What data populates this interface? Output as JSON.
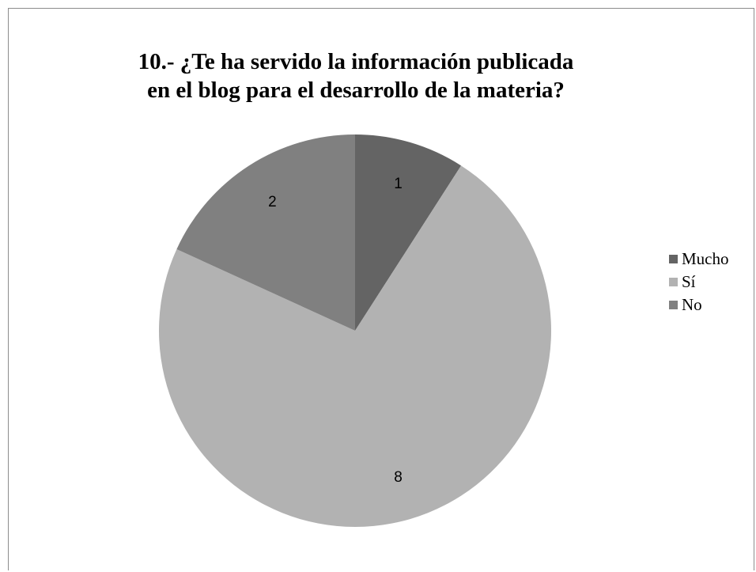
{
  "chart_data": {
    "type": "pie",
    "title": "10.- ¿Te ha servido la información publicada en el blog para el desarrollo de la materia?",
    "title_lines": [
      "10.- ¿Te ha servido la información publicada",
      "en el blog para el desarrollo de la materia?"
    ],
    "categories": [
      "Mucho",
      "Sí",
      "No"
    ],
    "values": [
      1,
      8,
      2
    ],
    "data_labels": [
      "1",
      "8",
      "2"
    ],
    "colors": [
      "#646464",
      "#b2b2b2",
      "#808080"
    ],
    "legend_position": "right",
    "start_angle": "12 o'clock",
    "direction": "clockwise"
  }
}
